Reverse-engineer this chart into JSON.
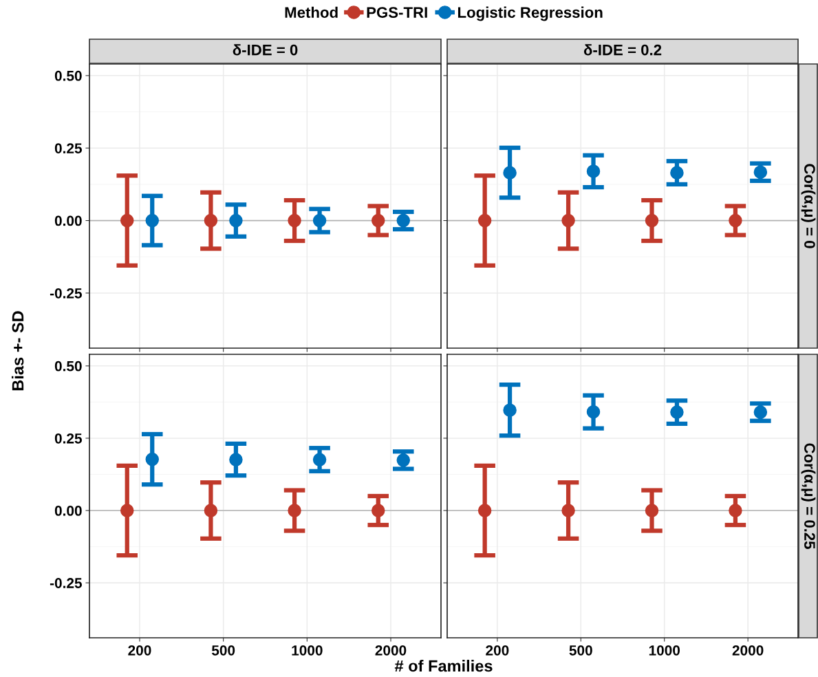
{
  "chart_data": [
    {
      "type": "scatter",
      "title": "δ-IDE = 0",
      "ylabel": "Bias +- SD",
      "legend_title": "Method",
      "legend": "top",
      "categories": [
        "200",
        "500",
        "1000",
        "2000"
      ],
      "ylim": [
        -0.44,
        0.54
      ],
      "yticks": [
        {
          "value": -0.25,
          "label": "-0.25"
        },
        {
          "value": 0,
          "label": "0.00"
        },
        {
          "value": 0.25,
          "label": "0.25"
        },
        {
          "value": 0.5,
          "label": "0.50"
        }
      ],
      "grid": true,
      "marker": "circle",
      "tick_labels": "y",
      "ref_lines": [
        {
          "axis": "y",
          "value": 0,
          "color": "#b3b3b3"
        }
      ],
      "series": [
        {
          "name": "PGS-TRI",
          "color": "#c0392b",
          "values": [
            0,
            0,
            0,
            0
          ],
          "errors": [
            0.155,
            0.097,
            0.07,
            0.05
          ]
        },
        {
          "name": "Logistic Regression",
          "color": "#0072bc",
          "values": [
            0,
            0,
            0,
            0
          ],
          "errors": [
            0.085,
            0.055,
            0.04,
            0.03
          ]
        }
      ]
    },
    {
      "type": "scatter",
      "title": "δ-IDE = 0.2",
      "y2label": "Cor(α,μ) = 0",
      "categories": [
        "200",
        "500",
        "1000",
        "2000"
      ],
      "ylim": [
        -0.44,
        0.54
      ],
      "yticks": [
        {
          "value": -0.25,
          "label": null
        },
        {
          "value": 0,
          "label": null
        },
        {
          "value": 0.25,
          "label": null
        },
        {
          "value": 0.5,
          "label": null
        }
      ],
      "grid": true,
      "marker": "circle",
      "tick_labels": false,
      "ref_lines": [
        {
          "axis": "y",
          "value": 0,
          "color": "#b3b3b3"
        }
      ],
      "series": [
        {
          "color": "#c0392b",
          "values": [
            0,
            0,
            0,
            0
          ],
          "errors": [
            0.155,
            0.097,
            0.07,
            0.05
          ]
        },
        {
          "color": "#0072bc",
          "values": [
            0.165,
            0.17,
            0.165,
            0.167
          ],
          "errors": [
            0.086,
            0.055,
            0.04,
            0.03
          ]
        }
      ]
    },
    {
      "type": "scatter",
      "xlabel": "# of Families",
      "categories": [
        "200",
        "500",
        "1000",
        "2000"
      ],
      "ylim": [
        -0.44,
        0.54
      ],
      "yticks": [
        {
          "value": -0.25,
          "label": "-0.25"
        },
        {
          "value": 0,
          "label": "0.00"
        },
        {
          "value": 0.25,
          "label": "0.25"
        },
        {
          "value": 0.5,
          "label": "0.50"
        }
      ],
      "grid": true,
      "marker": "circle",
      "ref_lines": [
        {
          "axis": "y",
          "value": 0,
          "color": "#b3b3b3"
        }
      ],
      "series": [
        {
          "color": "#c0392b",
          "values": [
            0,
            0,
            0,
            0
          ],
          "errors": [
            0.155,
            0.097,
            0.07,
            0.05
          ]
        },
        {
          "color": "#0072bc",
          "values": [
            0.177,
            0.176,
            0.176,
            0.174
          ],
          "errors": [
            0.087,
            0.055,
            0.04,
            0.03
          ]
        }
      ]
    },
    {
      "type": "scatter",
      "y2label": "Cor(α,μ) = 0.25",
      "categories": [
        "200",
        "500",
        "1000",
        "2000"
      ],
      "ylim": [
        -0.44,
        0.54
      ],
      "yticks": [
        {
          "value": -0.25,
          "label": null
        },
        {
          "value": 0,
          "label": null
        },
        {
          "value": 0.25,
          "label": null
        },
        {
          "value": 0.5,
          "label": null
        }
      ],
      "grid": true,
      "marker": "circle",
      "tick_labels": "x",
      "ref_lines": [
        {
          "axis": "y",
          "value": 0,
          "color": "#b3b3b3"
        }
      ],
      "series": [
        {
          "color": "#c0392b",
          "values": [
            0,
            0,
            0,
            0
          ],
          "errors": [
            0.155,
            0.097,
            0.07,
            0.05
          ]
        },
        {
          "color": "#0072bc",
          "values": [
            0.347,
            0.341,
            0.34,
            0.34
          ],
          "errors": [
            0.088,
            0.057,
            0.04,
            0.03
          ]
        }
      ]
    }
  ]
}
